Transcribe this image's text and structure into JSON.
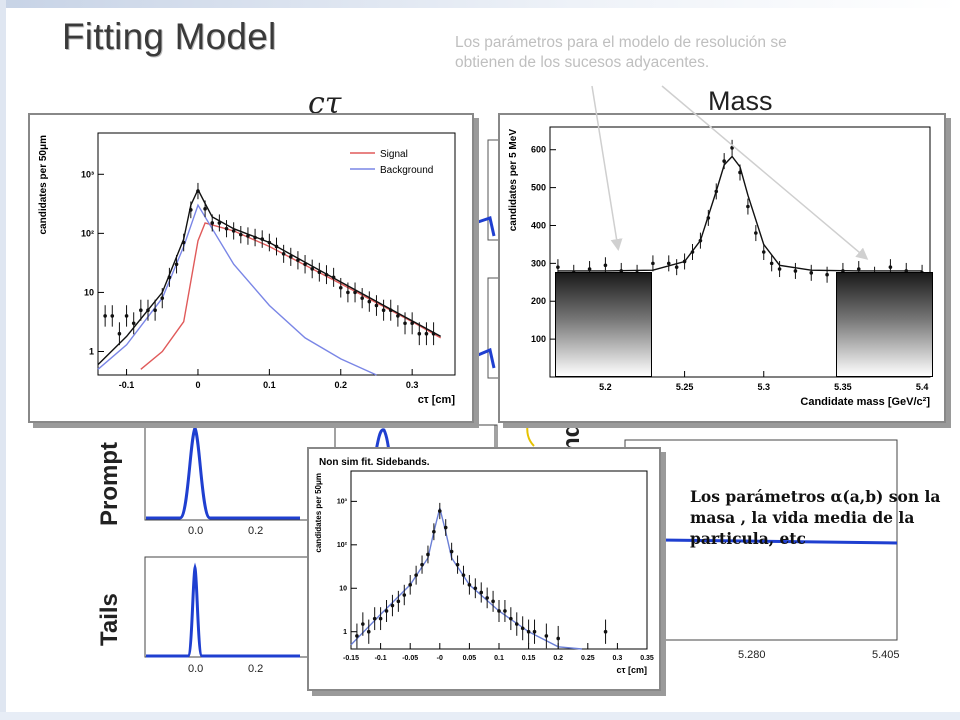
{
  "slide": {
    "title": "Fitting Model",
    "note_top": "Los parámetros para el modelo de resolución se obtienen de los sucesos adyacentes.",
    "ctau_heading": "cτ",
    "mass_heading": "Mass",
    "fit_note": "Los parámetros α(a,b) son la masa , la vida media de la particula, etc",
    "label_prompt": "Prompt",
    "label_tails": "Tails",
    "label_band_fragment": "nd"
  },
  "chart_data": [
    {
      "type": "line",
      "log_y": true,
      "xlabel": "cτ [cm]",
      "ylabel": "candidates per 50μm",
      "xlim": [
        -0.14,
        0.36
      ],
      "ylim": [
        0.4,
        5000
      ],
      "x_ticks": [
        "-0.1",
        "0",
        "0.1",
        "0.2",
        "0.3"
      ],
      "y_ticks": [
        "1",
        "10",
        "10²",
        "10³"
      ],
      "legend": [
        "Signal",
        "Background"
      ],
      "series": [
        {
          "name": "Signal",
          "color": "#e05a5a",
          "x": [
            -0.08,
            -0.05,
            -0.02,
            0.0,
            0.01,
            0.05,
            0.1,
            0.2,
            0.3,
            0.34
          ],
          "y": [
            0.5,
            1.0,
            3.2,
            75,
            150,
            110,
            60,
            14,
            3.2,
            1.7
          ]
        },
        {
          "name": "Background",
          "color": "#7a86e6",
          "x": [
            -0.14,
            -0.1,
            -0.05,
            -0.02,
            0.0,
            0.02,
            0.05,
            0.1,
            0.15,
            0.2,
            0.25
          ],
          "y": [
            0.5,
            1.3,
            8,
            60,
            300,
            120,
            30,
            6,
            1.7,
            0.75,
            0.4
          ]
        },
        {
          "name": "Total",
          "color": "#111111",
          "x": [
            -0.14,
            -0.1,
            -0.05,
            -0.02,
            -0.01,
            0.0,
            0.01,
            0.02,
            0.05,
            0.1,
            0.2,
            0.3,
            0.34
          ],
          "y": [
            0.6,
            1.8,
            10,
            80,
            300,
            550,
            320,
            190,
            120,
            70,
            15,
            3.3,
            1.8
          ]
        }
      ],
      "points": {
        "x": [
          -0.13,
          -0.12,
          -0.11,
          -0.1,
          -0.09,
          -0.08,
          -0.07,
          -0.06,
          -0.05,
          -0.04,
          -0.03,
          -0.02,
          -0.01,
          0.0,
          0.01,
          0.02,
          0.03,
          0.04,
          0.05,
          0.06,
          0.07,
          0.08,
          0.09,
          0.1,
          0.11,
          0.12,
          0.13,
          0.14,
          0.15,
          0.16,
          0.17,
          0.18,
          0.19,
          0.2,
          0.21,
          0.22,
          0.23,
          0.24,
          0.25,
          0.26,
          0.27,
          0.28,
          0.29,
          0.3,
          0.31,
          0.32,
          0.33
        ],
        "y": [
          4,
          4,
          2,
          4,
          3,
          5,
          5,
          5,
          8,
          18,
          30,
          70,
          250,
          520,
          260,
          150,
          150,
          120,
          110,
          95,
          90,
          85,
          80,
          70,
          60,
          45,
          40,
          35,
          30,
          25,
          22,
          20,
          18,
          12,
          10,
          10,
          8,
          7,
          6,
          5,
          5,
          4,
          3,
          3,
          2,
          2,
          2
        ]
      }
    },
    {
      "type": "line",
      "xlabel": "Candidate mass [GeV/c²]",
      "ylabel": "candidates per 5 MeV",
      "xlim": [
        5.165,
        5.405
      ],
      "ylim": [
        0,
        660
      ],
      "x_ticks": [
        "5.2",
        "5.25",
        "5.3",
        "5.35",
        "5.4"
      ],
      "y_ticks": [
        "100",
        "200",
        "300",
        "400",
        "500",
        "600"
      ],
      "series": [
        {
          "name": "Fit",
          "color": "#111111",
          "x": [
            5.17,
            5.2,
            5.23,
            5.25,
            5.26,
            5.27,
            5.275,
            5.28,
            5.285,
            5.29,
            5.3,
            5.31,
            5.33,
            5.36,
            5.4
          ],
          "y": [
            280,
            280,
            282,
            305,
            360,
            490,
            560,
            582,
            555,
            480,
            350,
            295,
            282,
            280,
            280
          ]
        }
      ],
      "points": {
        "x": [
          5.17,
          5.18,
          5.19,
          5.2,
          5.21,
          5.22,
          5.23,
          5.24,
          5.245,
          5.25,
          5.255,
          5.26,
          5.265,
          5.27,
          5.275,
          5.28,
          5.285,
          5.29,
          5.295,
          5.3,
          5.305,
          5.31,
          5.32,
          5.33,
          5.34,
          5.35,
          5.36,
          5.37,
          5.38,
          5.39,
          5.4
        ],
        "y": [
          290,
          275,
          285,
          295,
          280,
          275,
          300,
          300,
          290,
          305,
          330,
          360,
          420,
          490,
          570,
          605,
          540,
          450,
          380,
          330,
          300,
          285,
          280,
          275,
          270,
          280,
          285,
          270,
          290,
          280,
          275
        ]
      }
    },
    {
      "type": "line",
      "log_y": true,
      "title": "Non sim fit. Sidebands.",
      "xlabel": "cτ [cm]",
      "ylabel": "candidates per 50μm",
      "xlim": [
        -0.15,
        0.35
      ],
      "ylim": [
        0.4,
        5000
      ],
      "x_ticks": [
        "-0.15",
        "-0.1",
        "-0.05",
        "-0",
        "0.05",
        "0.1",
        "0.15",
        "0.2",
        "0.25",
        "0.3",
        "0.35"
      ],
      "y_ticks": [
        "1",
        "10",
        "10²",
        "10³"
      ],
      "series": [
        {
          "name": "Fit",
          "color": "#6b7fd6",
          "x": [
            -0.15,
            -0.1,
            -0.05,
            -0.02,
            -0.01,
            0.0,
            0.01,
            0.02,
            0.05,
            0.1,
            0.15,
            0.2,
            0.24
          ],
          "y": [
            0.5,
            2.5,
            12,
            50,
            200,
            700,
            200,
            50,
            12,
            3,
            1,
            0.45,
            0.3
          ]
        }
      ],
      "points": {
        "x": [
          -0.14,
          -0.13,
          -0.12,
          -0.11,
          -0.1,
          -0.09,
          -0.08,
          -0.07,
          -0.06,
          -0.05,
          -0.04,
          -0.03,
          -0.02,
          -0.01,
          0.0,
          0.01,
          0.02,
          0.03,
          0.04,
          0.05,
          0.06,
          0.07,
          0.08,
          0.09,
          0.1,
          0.11,
          0.12,
          0.13,
          0.14,
          0.15,
          0.16,
          0.18,
          0.2,
          0.28
        ],
        "y": [
          0.8,
          1.5,
          1.0,
          2.0,
          2.0,
          3.0,
          4.0,
          5.0,
          7.0,
          12,
          20,
          35,
          60,
          200,
          600,
          250,
          70,
          35,
          20,
          12,
          10,
          8,
          6,
          5,
          3,
          3,
          2,
          1.5,
          1.2,
          1.0,
          1.0,
          0.8,
          0.7,
          1.0
        ]
      }
    }
  ],
  "background_plots": {
    "prompt_x_ticks": [
      "0.0",
      "0.2"
    ],
    "tails_x_ticks": [
      "0.0",
      "0.2"
    ],
    "mass_bg_x_ticks": [
      "5.280",
      "5.405"
    ]
  }
}
